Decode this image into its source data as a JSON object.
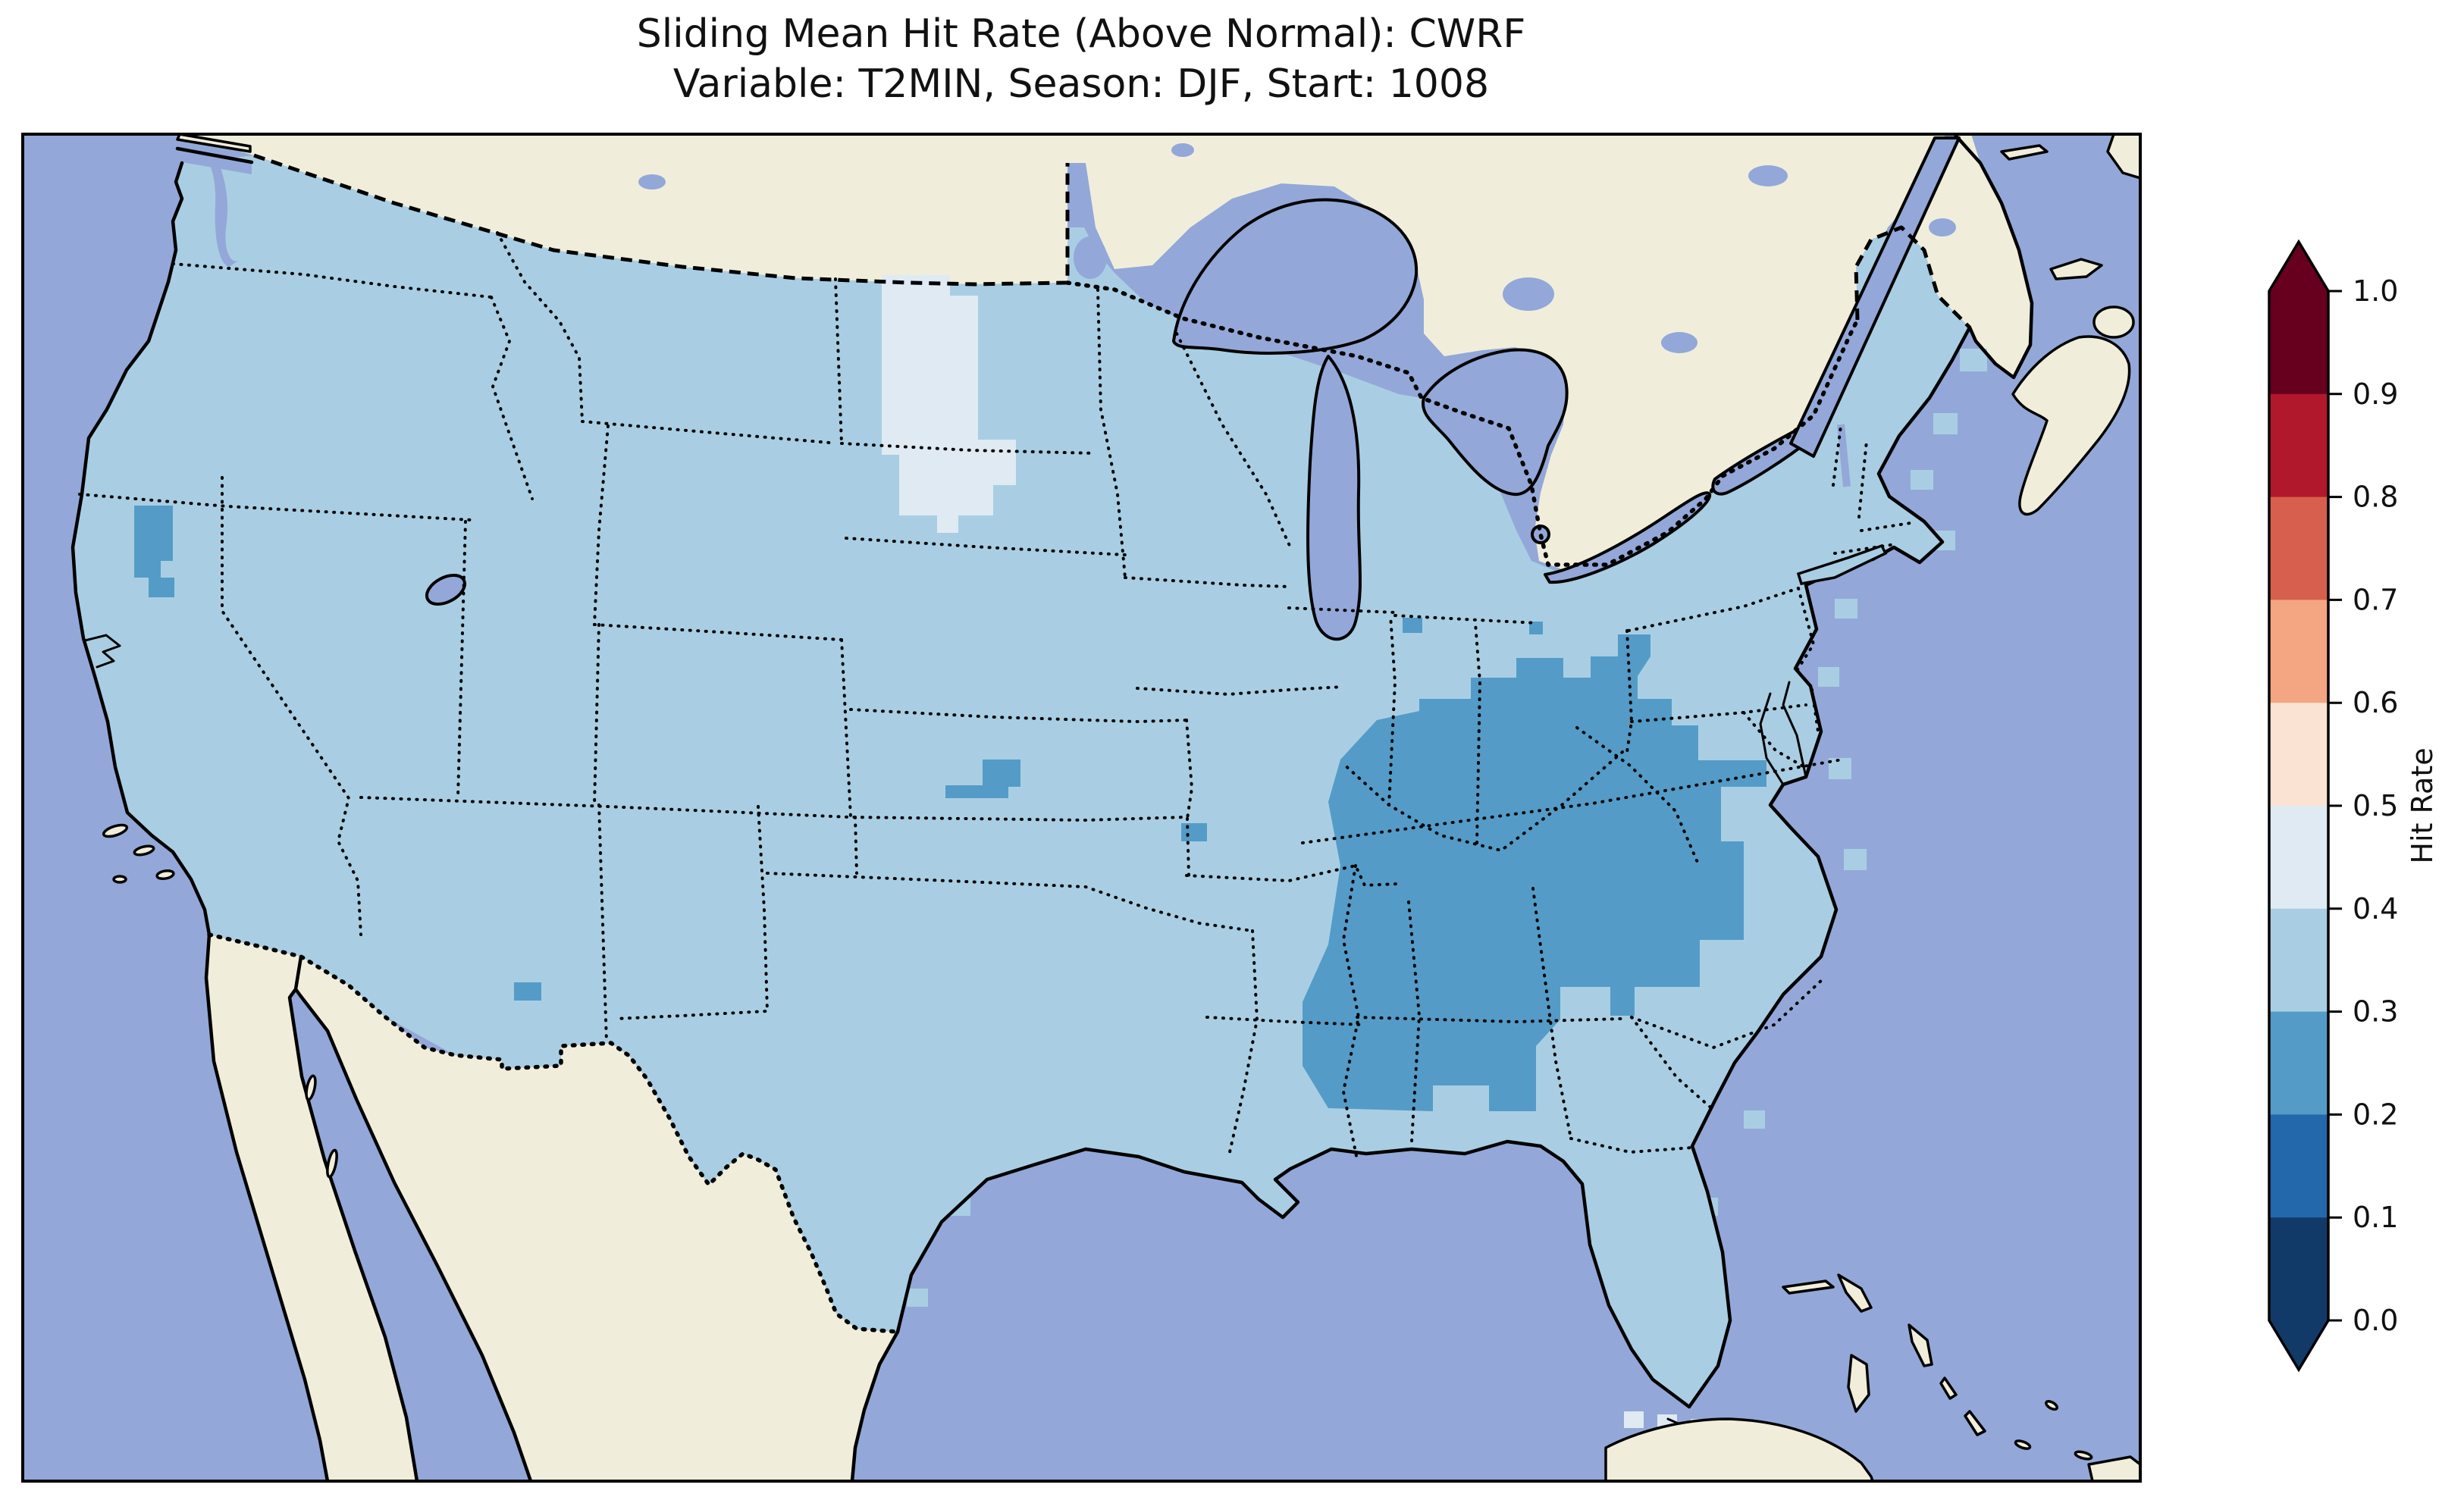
{
  "figure": {
    "title_line1": "Sliding Mean Hit Rate (Above Normal): CWRF",
    "title_line2": "Variable: T2MIN, Season: DJF, Start: 1008"
  },
  "colorbar": {
    "label": "Hit Rate",
    "tick_labels": [
      "1.0",
      "0.9",
      "0.8",
      "0.7",
      "0.6",
      "0.5",
      "0.4",
      "0.3",
      "0.2",
      "0.1",
      "0.0"
    ],
    "bins_top_to_bottom": [
      {
        "range": "0.9-1.0",
        "color": "#67001f"
      },
      {
        "range": "0.8-0.9",
        "color": "#b2182b"
      },
      {
        "range": "0.7-0.8",
        "color": "#d6604d"
      },
      {
        "range": "0.6-0.7",
        "color": "#f4a582"
      },
      {
        "range": "0.5-0.6",
        "color": "#fbe3d4"
      },
      {
        "range": "0.4-0.5",
        "color": "#dfeaf3"
      },
      {
        "range": "0.3-0.4",
        "color": "#a9cee3"
      },
      {
        "range": "0.2-0.3",
        "color": "#549cc7"
      },
      {
        "range": "0.1-0.2",
        "color": "#2468ac"
      },
      {
        "range": "0.0-0.1",
        "color": "#123a68"
      }
    ],
    "extend_above_color": "#67001f",
    "extend_below_color": "#123a68",
    "outline_color": "#000000"
  },
  "map": {
    "colors": {
      "ocean": "#93a8d8",
      "foreign_land": "#f0eedb",
      "us_base": "#a9cee3",
      "hit_02_03": "#549cc7",
      "hit_04_05": "#dfeaf3",
      "coastline": "#000000"
    },
    "regions": [
      {
        "name": "conus-base",
        "hit_rate_bin": "0.3-0.4"
      },
      {
        "name": "kentucky-tennessee-west-virginia-virginia-appalachians",
        "hit_rate_bin": "0.2-0.3"
      },
      {
        "name": "western-north-dakota-into-south-dakota",
        "hit_rate_bin": "0.4-0.5"
      },
      {
        "name": "west-central-kansas-cluster",
        "hit_rate_bin": "0.2-0.3"
      },
      {
        "name": "sierra-nevada-california-strip",
        "hit_rate_bin": "0.2-0.3"
      },
      {
        "name": "southwest-new-mexico-cell",
        "hit_rate_bin": "0.2-0.3"
      },
      {
        "name": "south-central-kansas-cell",
        "hit_rate_bin": "0.2-0.3"
      },
      {
        "name": "southern-indiana-cell",
        "hit_rate_bin": "0.2-0.3"
      },
      {
        "name": "florida-keys-cells",
        "hit_rate_bin": "0.4-0.5"
      }
    ]
  },
  "chart_data": {
    "type": "heatmap",
    "title": "Sliding Mean Hit Rate (Above Normal): CWRF — Variable: T2MIN, Season: DJF, Start: 1008",
    "geography": "Continental United States (Lambert-conformal style projection), surrounding Canada/Mexico/Caribbean shown without data",
    "colorbar_label": "Hit Rate",
    "value_range": [
      0.0,
      1.0
    ],
    "tick_step": 0.1,
    "colormap": "RdBu_r, discrete 10 bins, extended arrows both ends",
    "legend_position": "right vertical colorbar",
    "series": [
      {
        "name": "CONUS background grid",
        "value_bin": [
          0.3,
          0.4
        ]
      },
      {
        "name": "Ohio Valley / central Appalachians (KY, TN, WV, W VA, N AL/GA fringe)",
        "value_bin": [
          0.2,
          0.3
        ]
      },
      {
        "name": "Western North Dakota into northern South Dakota patch",
        "value_bin": [
          0.4,
          0.5
        ]
      },
      {
        "name": "West-central Kansas small cluster",
        "value_bin": [
          0.2,
          0.3
        ]
      },
      {
        "name": "Sierra Nevada (E California) narrow strip",
        "value_bin": [
          0.2,
          0.3
        ]
      },
      {
        "name": "SW New Mexico single cell",
        "value_bin": [
          0.2,
          0.3
        ]
      },
      {
        "name": "South-central Kansas single cell",
        "value_bin": [
          0.2,
          0.3
        ]
      },
      {
        "name": "Southern Indiana single cell",
        "value_bin": [
          0.2,
          0.3
        ]
      },
      {
        "name": "Florida Keys few cells",
        "value_bin": [
          0.4,
          0.5
        ]
      }
    ]
  }
}
